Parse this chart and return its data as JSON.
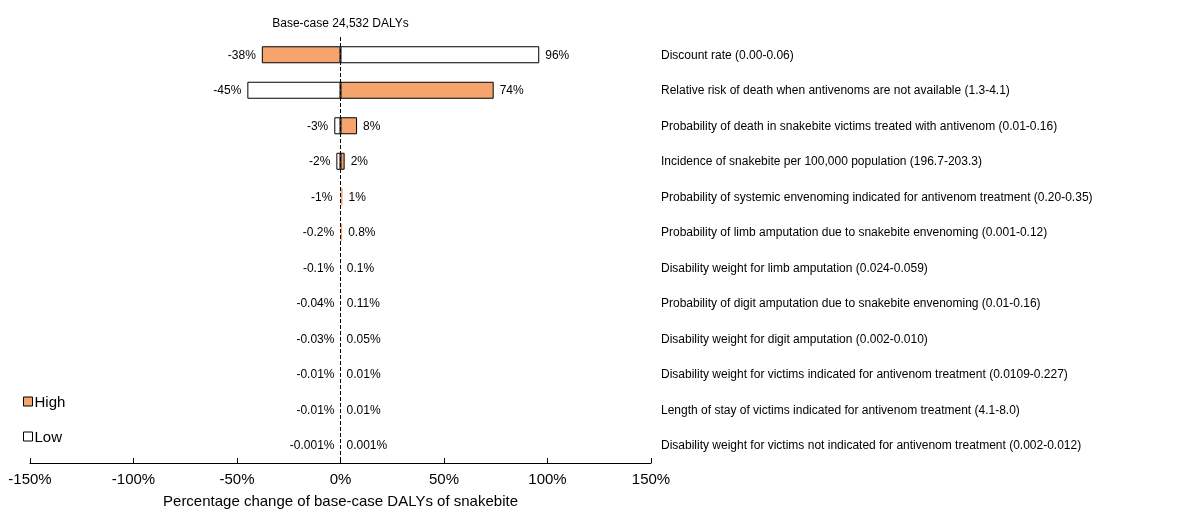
{
  "chart_data": {
    "type": "bar",
    "orientation": "horizontal",
    "xlabel": "Percentage change of base-case DALYs of snakebite",
    "categories": [
      "Discount rate (0.00-0.06)",
      "Relative risk of death when antivenoms are not available (1.3-4.1)",
      "Probability of death in snakebite victims treated with antivenom (0.01-0.16)",
      "Incidence of snakebite per 100,000 population (196.7-203.3)",
      "Probability of systemic envenoming indicated for antivenom treatment (0.20-0.35)",
      "Probability of limb amputation due to snakebite envenoming (0.001-0.12)",
      "Disability weight for limb amputation (0.024-0.059)",
      "Probability of digit amputation due to snakebite envenoming (0.01-0.16)",
      "Disability weight for digit amputation (0.002-0.010)",
      "Disability weight for victims indicated for antivenom treatment (0.0109-0.227)",
      "Length of stay of victims indicated for antivenom treatment (4.1-8.0)",
      "Disability weight for victims not indicated for antivenom treatment (0.002-0.012)"
    ],
    "series": [
      {
        "name": "High",
        "color": "#f4a46c",
        "values": [
          -38,
          74,
          8,
          2,
          1,
          0.8,
          0.1,
          0.11,
          0.05,
          0.01,
          0.01,
          0.001
        ],
        "value_labels": [
          "-38%",
          "74%",
          "8%",
          "2%",
          "1%",
          "0.8%",
          "0.1%",
          "0.11%",
          "0.05%",
          "0.01%",
          "0.01%",
          "0.001%"
        ]
      },
      {
        "name": "Low",
        "color": "#ffffff",
        "values": [
          96,
          -45,
          -3,
          -2,
          -1,
          -0.2,
          -0.1,
          -0.04,
          -0.03,
          -0.01,
          -0.01,
          -0.001
        ],
        "value_labels": [
          "96%",
          "-45%",
          "-3%",
          "-2%",
          "-1%",
          "-0.2%",
          "-0.1%",
          "-0.04%",
          "-0.03%",
          "-0.01%",
          "-0.01%",
          "-0.001%"
        ]
      }
    ],
    "xlim": [
      -150,
      150
    ],
    "xticks": [
      {
        "value": -150,
        "label": "-150%"
      },
      {
        "value": -100,
        "label": "-100%"
      },
      {
        "value": -50,
        "label": "-50%"
      },
      {
        "value": 0,
        "label": "0%"
      },
      {
        "value": 50,
        "label": "50%"
      },
      {
        "value": 100,
        "label": "100%"
      },
      {
        "value": 150,
        "label": "150%"
      }
    ],
    "ref_lines": [
      {
        "axis": "x",
        "value": 0,
        "label": "Base-case 24,532 DALYs",
        "color": "#000000",
        "line_style": "dashed"
      }
    ],
    "legend": "bottom left",
    "grid": false
  }
}
